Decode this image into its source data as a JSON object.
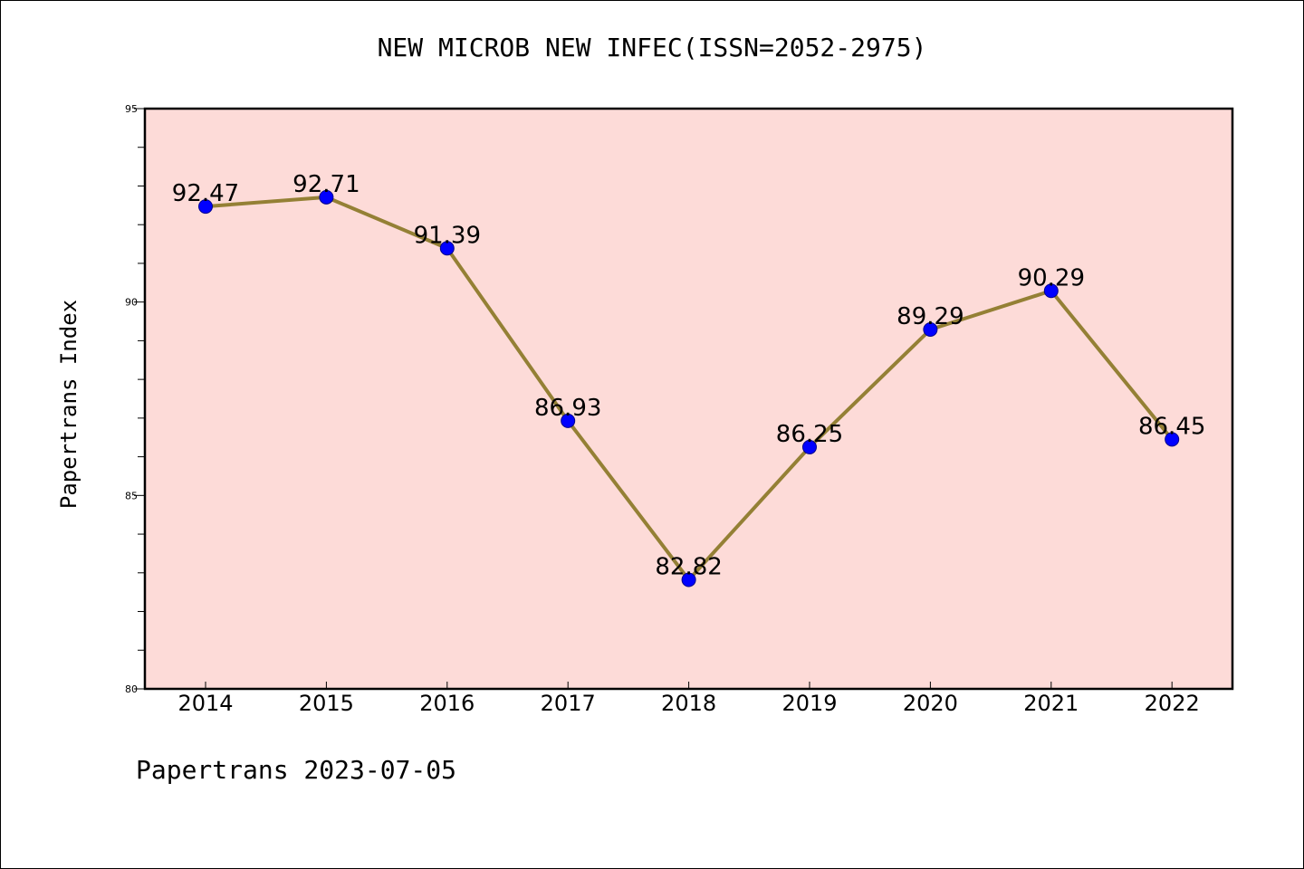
{
  "title": "NEW MICROB NEW INFEC(ISSN=2052-2975)",
  "footer": "Papertrans 2023-07-05",
  "chart_data": {
    "type": "line",
    "title": "NEW MICROB NEW INFEC(ISSN=2052-2975)",
    "xlabel": "",
    "ylabel": "Papertrans Index",
    "categories": [
      "2014",
      "2015",
      "2016",
      "2017",
      "2018",
      "2019",
      "2020",
      "2021",
      "2022"
    ],
    "series": [
      {
        "values": [
          92.47,
          92.71,
          91.39,
          86.93,
          82.82,
          86.25,
          89.29,
          90.29,
          86.45
        ],
        "data_labels": [
          "92.47",
          "92.71",
          "91.39",
          "86.93",
          "82.82",
          "86.25",
          "89.29",
          "90.29",
          "86.45"
        ]
      }
    ],
    "ylim": [
      80,
      95
    ],
    "yticks": [
      80,
      85,
      90,
      95
    ],
    "ytick_labels": [
      "80",
      "85",
      "90",
      "95"
    ],
    "grid": false,
    "legend": "none",
    "colors": {
      "plot_background": "#fddbd8",
      "line": "#948035",
      "marker": "#0000ff"
    }
  }
}
